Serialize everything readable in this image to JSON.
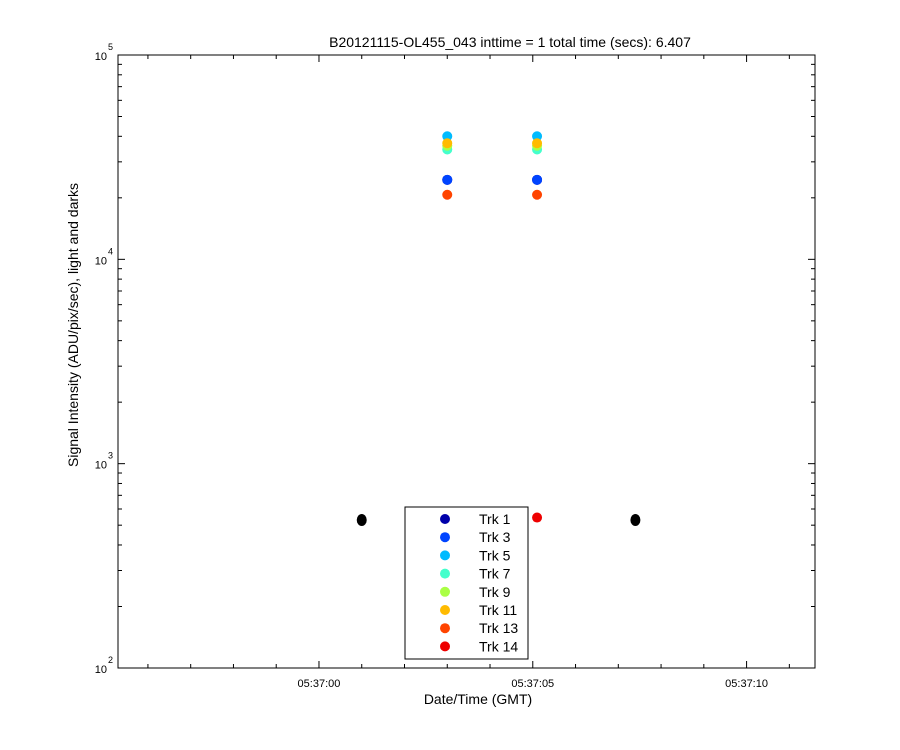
{
  "chart_data": {
    "type": "scatter",
    "title": "B20121115-OL455_043 inttime = 1 total time (secs): 6.407",
    "xlabel": "Date/Time (GMT)",
    "ylabel": "Signal Intensity (ADU/pix/sec), light and darks",
    "y_scale": "log",
    "ylim": [
      100,
      100000
    ],
    "xlim": [
      "05:36:55.3",
      "05:37:11.6"
    ],
    "x_ticks": [
      "05:37:00",
      "05:37:05",
      "05:37:10"
    ],
    "y_ticks": [
      {
        "base": "10",
        "exp": "2",
        "value": 100
      },
      {
        "base": "10",
        "exp": "3",
        "value": 1000
      },
      {
        "base": "10",
        "exp": "4",
        "value": 10000
      },
      {
        "base": "10",
        "exp": "5",
        "value": 100000
      }
    ],
    "grid": false,
    "legend_position": "bottom-center",
    "series": [
      {
        "name": "Trk 1",
        "color": "#0000aa",
        "points": [
          {
            "x": "05:37:03.0",
            "y": 24500
          },
          {
            "x": "05:37:05.1",
            "y": 24500
          }
        ]
      },
      {
        "name": "Trk 3",
        "color": "#0044ff",
        "points": [
          {
            "x": "05:37:03.0",
            "y": 24500
          },
          {
            "x": "05:37:05.1",
            "y": 24500
          }
        ]
      },
      {
        "name": "Trk 5",
        "color": "#00bbff",
        "points": [
          {
            "x": "05:37:03.0",
            "y": 40000
          },
          {
            "x": "05:37:05.1",
            "y": 40000
          }
        ]
      },
      {
        "name": "Trk 7",
        "color": "#44ffcc",
        "points": [
          {
            "x": "05:37:03.0",
            "y": 34500
          },
          {
            "x": "05:37:05.1",
            "y": 34500
          }
        ]
      },
      {
        "name": "Trk 9",
        "color": "#aaff44",
        "points": [
          {
            "x": "05:37:03.0",
            "y": 36000
          },
          {
            "x": "05:37:05.1",
            "y": 36000
          }
        ]
      },
      {
        "name": "Trk 11",
        "color": "#ffbb00",
        "points": [
          {
            "x": "05:37:03.0",
            "y": 37000
          },
          {
            "x": "05:37:05.1",
            "y": 37000
          }
        ]
      },
      {
        "name": "Trk 13",
        "color": "#ff4400",
        "points": [
          {
            "x": "05:37:03.0",
            "y": 20700
          },
          {
            "x": "05:37:05.1",
            "y": 20700
          }
        ]
      },
      {
        "name": "Trk 14",
        "color": "#ee0000",
        "points": [
          {
            "x": "05:37:05.1",
            "y": 545
          }
        ]
      }
    ],
    "dark_points": {
      "color": "#000000",
      "points": [
        {
          "x": "05:37:01.0",
          "y": 530
        },
        {
          "x": "05:37:07.4",
          "y": 530
        }
      ]
    }
  }
}
